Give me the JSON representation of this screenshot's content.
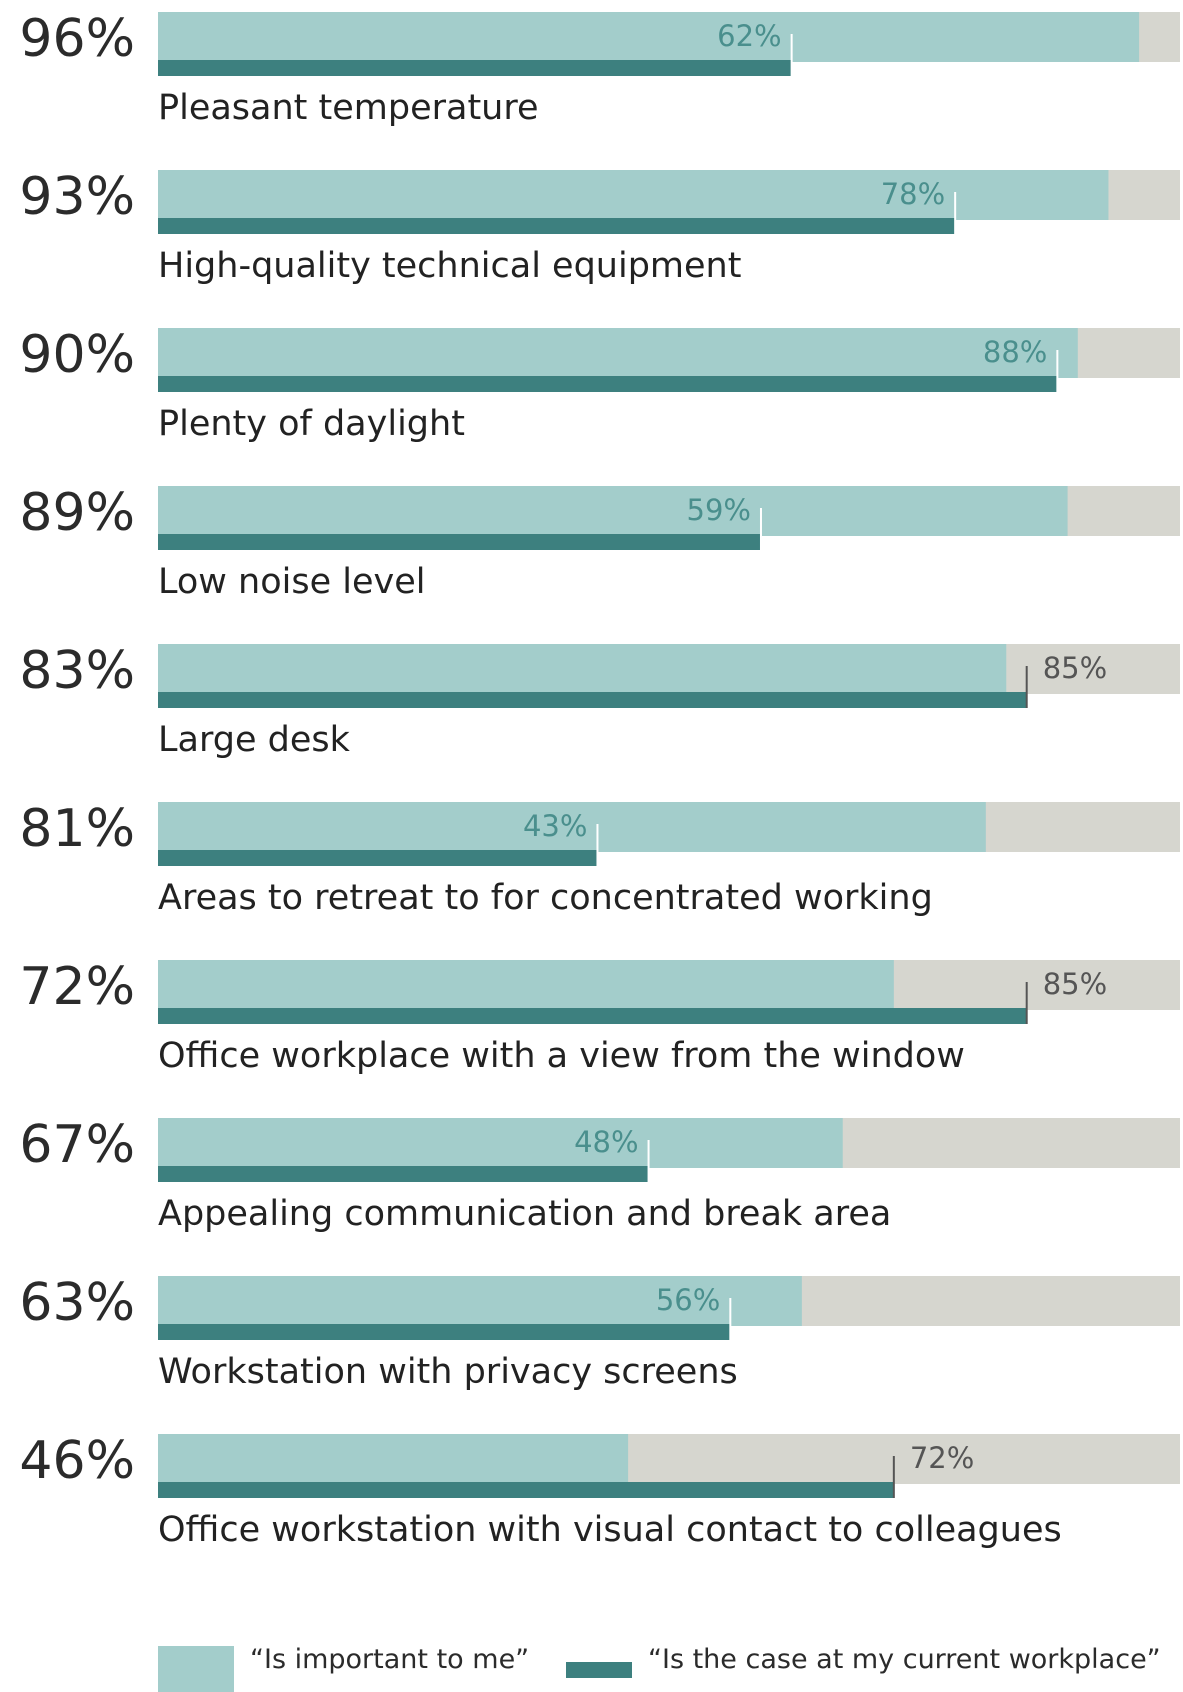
{
  "chart_data": {
    "type": "bar",
    "orientation": "horizontal",
    "xlim": [
      0,
      100
    ],
    "categories": [
      "Pleasant temperature",
      "High-quality technical equipment",
      "Plenty of daylight",
      "Low noise level",
      "Large desk",
      "Areas to retreat to for concentrated working",
      "Office workplace with a view from the window",
      "Appealing communication and break area",
      "Workstation with privacy screens",
      "Office workstation with visual contact to colleagues"
    ],
    "series": [
      {
        "name": "“Is important to me”",
        "values": [
          96,
          93,
          90,
          89,
          83,
          81,
          72,
          67,
          63,
          46
        ],
        "labels": [
          "96%",
          "93%",
          "90%",
          "89%",
          "83%",
          "81%",
          "72%",
          "67%",
          "63%",
          "46%"
        ]
      },
      {
        "name": "“Is the case at my current workplace”",
        "values": [
          62,
          78,
          88,
          59,
          85,
          43,
          85,
          48,
          56,
          72
        ],
        "labels": [
          "62%",
          "78%",
          "88%",
          "59%",
          "85%",
          "43%",
          "85%",
          "48%",
          "56%",
          "72%"
        ]
      }
    ],
    "legend": "bottom",
    "colors": {
      "important": "#a3cdcb",
      "current": "#3d807f",
      "track": "#d6d6cf",
      "label_on_bar": "#4a8f8d",
      "label_off_bar": "#555555",
      "tick": "#ffffff",
      "tick_off_bar": "#555555"
    }
  }
}
